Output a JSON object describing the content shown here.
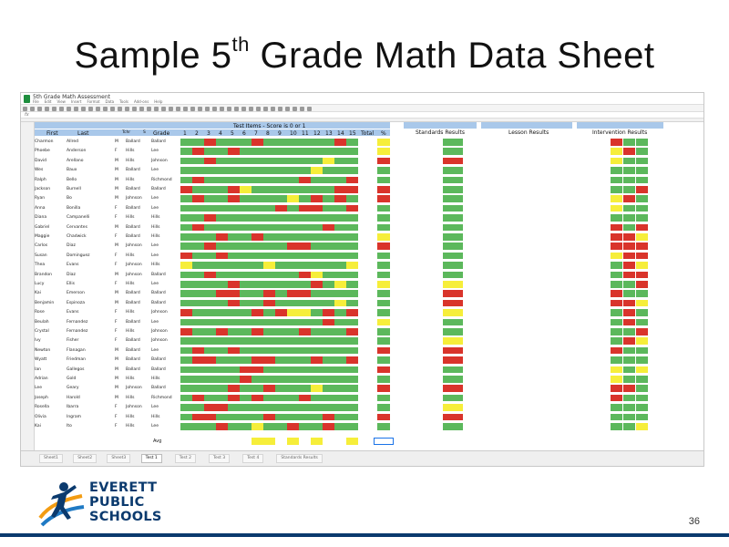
{
  "slide": {
    "title_main": "Sample 5",
    "title_sup": "th",
    "title_rest": "Grade Math Data Sheet",
    "page_number": "36"
  },
  "sheet": {
    "doc_title": "5th Grade Math Assessment",
    "menu": [
      "File",
      "Edit",
      "View",
      "Insert",
      "Format",
      "Data",
      "Tools",
      "Add-ons",
      "Help"
    ],
    "fx": "fx",
    "header": {
      "test_items": "Test Items - Score is 0 or 1",
      "first": "First",
      "last": "Last",
      "teacher": "Tchr",
      "s": "S",
      "grade": "Grade",
      "total": "Total",
      "pct": "%",
      "standards": "Standards Results",
      "lesson": "Lesson Results",
      "intervention": "Intervention Results"
    },
    "items": [
      "1",
      "2",
      "3",
      "4",
      "5",
      "6",
      "7",
      "8",
      "9",
      "10",
      "11",
      "12",
      "13",
      "14",
      "15"
    ],
    "rows": [
      {
        "first": "Charmon",
        "last": "Allred",
        "s": "M",
        "teacher": "Ballard",
        "grade": "Ballard"
      },
      {
        "first": "Phoebe",
        "last": "Anderson",
        "s": "F",
        "teacher": "Hills",
        "grade": "Lee"
      },
      {
        "first": "David",
        "last": "Arellano",
        "s": "M",
        "teacher": "Hills",
        "grade": "Johnson"
      },
      {
        "first": "Wes",
        "last": "Baux",
        "s": "M",
        "teacher": "Ballard",
        "grade": "Lee"
      },
      {
        "first": "Ralph",
        "last": "Bello",
        "s": "M",
        "teacher": "Hills",
        "grade": "Richmond"
      },
      {
        "first": "Jackson",
        "last": "Burnell",
        "s": "M",
        "teacher": "Ballard",
        "grade": "Ballard"
      },
      {
        "first": "Ryan",
        "last": "Bo",
        "s": "M",
        "teacher": "Johnson",
        "grade": "Lee"
      },
      {
        "first": "Anna",
        "last": "Bonilla",
        "s": "F",
        "teacher": "Ballard",
        "grade": "Lee"
      },
      {
        "first": "Diana",
        "last": "Campanelli",
        "s": "F",
        "teacher": "Hills",
        "grade": "Hills"
      },
      {
        "first": "Gabriel",
        "last": "Cervantes",
        "s": "M",
        "teacher": "Ballard",
        "grade": "Hills"
      },
      {
        "first": "Maggie",
        "last": "Chadwick",
        "s": "F",
        "teacher": "Ballard",
        "grade": "Hills"
      },
      {
        "first": "Carlos",
        "last": "Diaz",
        "s": "M",
        "teacher": "Johnson",
        "grade": "Lee"
      },
      {
        "first": "Susan",
        "last": "Dominguez",
        "s": "F",
        "teacher": "Hills",
        "grade": "Lee"
      },
      {
        "first": "Thea",
        "last": "Evans",
        "s": "F",
        "teacher": "Johnson",
        "grade": "Hills"
      },
      {
        "first": "Brandon",
        "last": "Diaz",
        "s": "M",
        "teacher": "Johnson",
        "grade": "Ballard"
      },
      {
        "first": "Lucy",
        "last": "Ellis",
        "s": "F",
        "teacher": "Hills",
        "grade": "Lee"
      },
      {
        "first": "Kai",
        "last": "Emerson",
        "s": "M",
        "teacher": "Ballard",
        "grade": "Ballard"
      },
      {
        "first": "Benjamin",
        "last": "Espinoza",
        "s": "M",
        "teacher": "Ballard",
        "grade": "Ballard"
      },
      {
        "first": "Rose",
        "last": "Evans",
        "s": "F",
        "teacher": "Hills",
        "grade": "Johnson"
      },
      {
        "first": "Beulah",
        "last": "Fernandez",
        "s": "F",
        "teacher": "Ballard",
        "grade": "Lee"
      },
      {
        "first": "Crystal",
        "last": "Fernandez",
        "s": "F",
        "teacher": "Hills",
        "grade": "Johnson"
      },
      {
        "first": "Ivy",
        "last": "Fisher",
        "s": "F",
        "teacher": "Ballard",
        "grade": "Johnson"
      },
      {
        "first": "Newton",
        "last": "Flanagan",
        "s": "M",
        "teacher": "Ballard",
        "grade": "Lee"
      },
      {
        "first": "Wyatt",
        "last": "Friedman",
        "s": "M",
        "teacher": "Ballard",
        "grade": "Ballard"
      },
      {
        "first": "Ian",
        "last": "Gallegos",
        "s": "M",
        "teacher": "Ballard",
        "grade": "Ballard"
      },
      {
        "first": "Adrian",
        "last": "Gold",
        "s": "M",
        "teacher": "Hills",
        "grade": "Hills"
      },
      {
        "first": "Lee",
        "last": "Geary",
        "s": "M",
        "teacher": "Johnson",
        "grade": "Ballard"
      },
      {
        "first": "Joseph",
        "last": "Harold",
        "s": "M",
        "teacher": "Hills",
        "grade": "Richmond"
      },
      {
        "first": "Rosella",
        "last": "Ibarra",
        "s": "F",
        "teacher": "Johnson",
        "grade": "Lee"
      },
      {
        "first": "Olivia",
        "last": "Ingram",
        "s": "F",
        "teacher": "Hills",
        "grade": "Hills"
      },
      {
        "first": "Kai",
        "last": "Ito",
        "s": "F",
        "teacher": "Hills",
        "grade": "Lee"
      }
    ],
    "avg_label": "Avg",
    "tabs": [
      "Sheet1",
      "Sheet2",
      "Sheet3",
      "Test 1",
      "Test 2",
      "Test 3",
      "Test 4",
      "Standards Results"
    ],
    "active_tab_index": 3
  },
  "logo": {
    "line1": "EVERETT",
    "line2": "PUBLIC",
    "line3": "SCHOOLS"
  },
  "colors": {
    "green": "#5cb85c",
    "red": "#d9342b",
    "yellow": "#f6ee3a",
    "header_blue": "#a9c8ea",
    "brand_navy": "#0b3a6e",
    "logo_orange": "#f39c12",
    "logo_blue": "#1f7ac4"
  }
}
